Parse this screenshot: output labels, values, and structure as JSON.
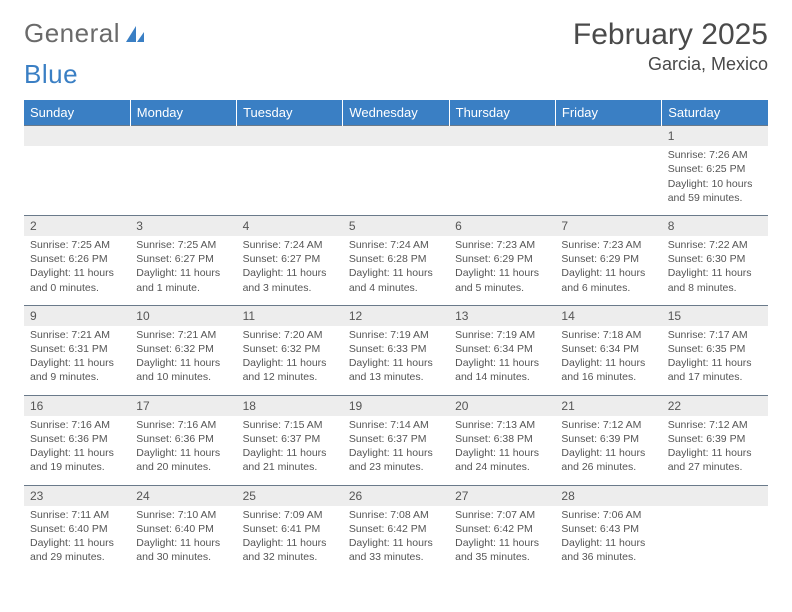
{
  "logo": {
    "text1": "General",
    "text2": "Blue"
  },
  "title": "February 2025",
  "location": "Garcia, Mexico",
  "colors": {
    "headerBg": "#3a7fc4",
    "headerText": "#ffffff",
    "dayRowBg": "#ededed",
    "bodyText": "#4a4a4a",
    "borderTop": "#6a7a8a"
  },
  "weekdays": [
    "Sunday",
    "Monday",
    "Tuesday",
    "Wednesday",
    "Thursday",
    "Friday",
    "Saturday"
  ],
  "weeks": [
    {
      "nums": [
        "",
        "",
        "",
        "",
        "",
        "",
        "1"
      ],
      "cells": [
        "",
        "",
        "",
        "",
        "",
        "",
        "Sunrise: 7:26 AM\nSunset: 6:25 PM\nDaylight: 10 hours and 59 minutes."
      ]
    },
    {
      "nums": [
        "2",
        "3",
        "4",
        "5",
        "6",
        "7",
        "8"
      ],
      "cells": [
        "Sunrise: 7:25 AM\nSunset: 6:26 PM\nDaylight: 11 hours and 0 minutes.",
        "Sunrise: 7:25 AM\nSunset: 6:27 PM\nDaylight: 11 hours and 1 minute.",
        "Sunrise: 7:24 AM\nSunset: 6:27 PM\nDaylight: 11 hours and 3 minutes.",
        "Sunrise: 7:24 AM\nSunset: 6:28 PM\nDaylight: 11 hours and 4 minutes.",
        "Sunrise: 7:23 AM\nSunset: 6:29 PM\nDaylight: 11 hours and 5 minutes.",
        "Sunrise: 7:23 AM\nSunset: 6:29 PM\nDaylight: 11 hours and 6 minutes.",
        "Sunrise: 7:22 AM\nSunset: 6:30 PM\nDaylight: 11 hours and 8 minutes."
      ]
    },
    {
      "nums": [
        "9",
        "10",
        "11",
        "12",
        "13",
        "14",
        "15"
      ],
      "cells": [
        "Sunrise: 7:21 AM\nSunset: 6:31 PM\nDaylight: 11 hours and 9 minutes.",
        "Sunrise: 7:21 AM\nSunset: 6:32 PM\nDaylight: 11 hours and 10 minutes.",
        "Sunrise: 7:20 AM\nSunset: 6:32 PM\nDaylight: 11 hours and 12 minutes.",
        "Sunrise: 7:19 AM\nSunset: 6:33 PM\nDaylight: 11 hours and 13 minutes.",
        "Sunrise: 7:19 AM\nSunset: 6:34 PM\nDaylight: 11 hours and 14 minutes.",
        "Sunrise: 7:18 AM\nSunset: 6:34 PM\nDaylight: 11 hours and 16 minutes.",
        "Sunrise: 7:17 AM\nSunset: 6:35 PM\nDaylight: 11 hours and 17 minutes."
      ]
    },
    {
      "nums": [
        "16",
        "17",
        "18",
        "19",
        "20",
        "21",
        "22"
      ],
      "cells": [
        "Sunrise: 7:16 AM\nSunset: 6:36 PM\nDaylight: 11 hours and 19 minutes.",
        "Sunrise: 7:16 AM\nSunset: 6:36 PM\nDaylight: 11 hours and 20 minutes.",
        "Sunrise: 7:15 AM\nSunset: 6:37 PM\nDaylight: 11 hours and 21 minutes.",
        "Sunrise: 7:14 AM\nSunset: 6:37 PM\nDaylight: 11 hours and 23 minutes.",
        "Sunrise: 7:13 AM\nSunset: 6:38 PM\nDaylight: 11 hours and 24 minutes.",
        "Sunrise: 7:12 AM\nSunset: 6:39 PM\nDaylight: 11 hours and 26 minutes.",
        "Sunrise: 7:12 AM\nSunset: 6:39 PM\nDaylight: 11 hours and 27 minutes."
      ]
    },
    {
      "nums": [
        "23",
        "24",
        "25",
        "26",
        "27",
        "28",
        ""
      ],
      "cells": [
        "Sunrise: 7:11 AM\nSunset: 6:40 PM\nDaylight: 11 hours and 29 minutes.",
        "Sunrise: 7:10 AM\nSunset: 6:40 PM\nDaylight: 11 hours and 30 minutes.",
        "Sunrise: 7:09 AM\nSunset: 6:41 PM\nDaylight: 11 hours and 32 minutes.",
        "Sunrise: 7:08 AM\nSunset: 6:42 PM\nDaylight: 11 hours and 33 minutes.",
        "Sunrise: 7:07 AM\nSunset: 6:42 PM\nDaylight: 11 hours and 35 minutes.",
        "Sunrise: 7:06 AM\nSunset: 6:43 PM\nDaylight: 11 hours and 36 minutes.",
        ""
      ]
    }
  ]
}
